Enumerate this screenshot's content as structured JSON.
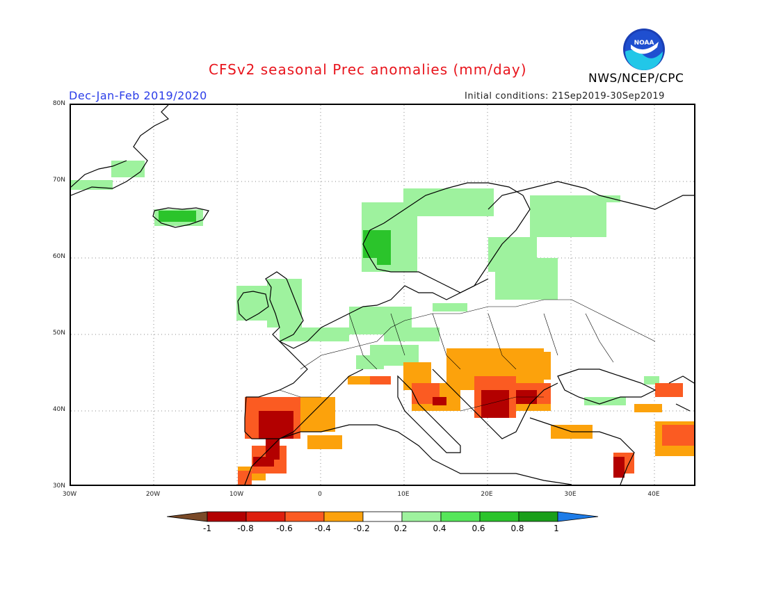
{
  "header": {
    "title": "CFSv2 seasonal Prec anomalies (mm/day)",
    "period": "Dec-Jan-Feb 2019/2020",
    "initial_conditions": "Initial conditions: 21Sep2019-30Sep2019",
    "agency": "NWS/NCEP/CPC",
    "logo_text": "NOAA"
  },
  "axes": {
    "lat_labels": [
      "80N",
      "70N",
      "60N",
      "50N",
      "40N",
      "30N"
    ],
    "lon_labels": [
      "30W",
      "20W",
      "10W",
      "0",
      "10E",
      "20E",
      "30E",
      "40E"
    ]
  },
  "legend": {
    "labels": [
      "-1",
      "-0.8",
      "-0.6",
      "-0.4",
      "-0.2",
      "0.2",
      "0.4",
      "0.6",
      "0.8",
      "1"
    ],
    "colors": [
      "#7a4a28",
      "#b30000",
      "#de1f0e",
      "#fb5b22",
      "#fca20c",
      "#ffffff",
      "#9ef29e",
      "#56e65a",
      "#2bc42b",
      "#1a9f1a",
      "#1e7ce8"
    ]
  }
}
